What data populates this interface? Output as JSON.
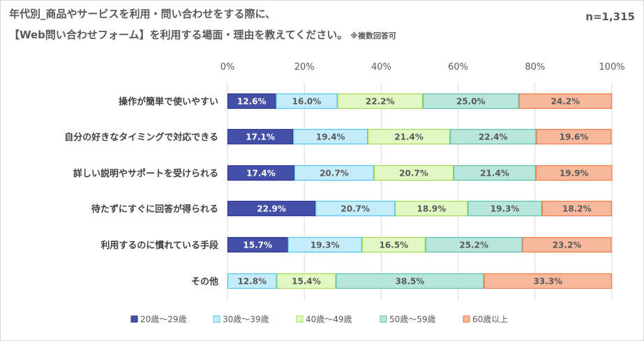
{
  "chart_data": {
    "type": "bar",
    "orientation": "horizontal",
    "stacked": true,
    "title_line1": "年代別_商品やサービスを利用・問い合わせをする際に、",
    "title_line2": "【Web問い合わせフォーム】を利用する場面・理由を教えてください。",
    "note": "※複数回答可",
    "sample_size": "n=1,315",
    "categories": [
      "操作が簡単で使いやすい",
      "自分の好きなタイミングで対応できる",
      "詳しい説明やサポートを受けられる",
      "待たずにすぐに回答が得られる",
      "利用するのに慣れている手段",
      "その他"
    ],
    "xticks": [
      "0%",
      "20%",
      "40%",
      "60%",
      "80%",
      "100%"
    ],
    "xlim": [
      0,
      100
    ],
    "grid": true,
    "legend_position": "bottom",
    "series": [
      {
        "name": "20歳～29歳",
        "color": "#4450a8",
        "border": "#2f3a8f",
        "labelColor": "#ffffff",
        "values": [
          12.6,
          17.1,
          17.4,
          22.9,
          15.7,
          null
        ],
        "labels": [
          "12.6%",
          "17.1%",
          "17.4%",
          "22.9%",
          "15.7%",
          ""
        ]
      },
      {
        "name": "30歳～39歳",
        "color": "#c5ecfb",
        "border": "#4ec6ec",
        "labelColor": "#595959",
        "values": [
          16.0,
          19.4,
          20.7,
          20.7,
          19.3,
          12.8
        ],
        "labels": [
          "16.0%",
          "19.4%",
          "20.7%",
          "20.7%",
          "19.3%",
          "12.8%"
        ]
      },
      {
        "name": "40歳～49歳",
        "color": "#e2f8c2",
        "border": "#a4dc55",
        "labelColor": "#595959",
        "values": [
          22.2,
          21.4,
          20.7,
          18.9,
          16.5,
          15.4
        ],
        "labels": [
          "22.2%",
          "21.4%",
          "20.7%",
          "18.9%",
          "16.5%",
          "15.4%"
        ]
      },
      {
        "name": "50歳～59歳",
        "color": "#b8e6db",
        "border": "#5fbfaa",
        "labelColor": "#595959",
        "values": [
          25.0,
          22.4,
          21.4,
          19.3,
          25.2,
          38.5
        ],
        "labels": [
          "25.0%",
          "22.4%",
          "21.4%",
          "19.3%",
          "25.2%",
          "38.5%"
        ]
      },
      {
        "name": "60歳以上",
        "color": "#f8b89c",
        "border": "#ef7a45",
        "labelColor": "#595959",
        "values": [
          24.2,
          19.6,
          19.9,
          18.2,
          23.2,
          33.3
        ],
        "labels": [
          "24.2%",
          "19.6%",
          "19.9%",
          "18.2%",
          "23.2%",
          "33.3%"
        ]
      }
    ]
  }
}
